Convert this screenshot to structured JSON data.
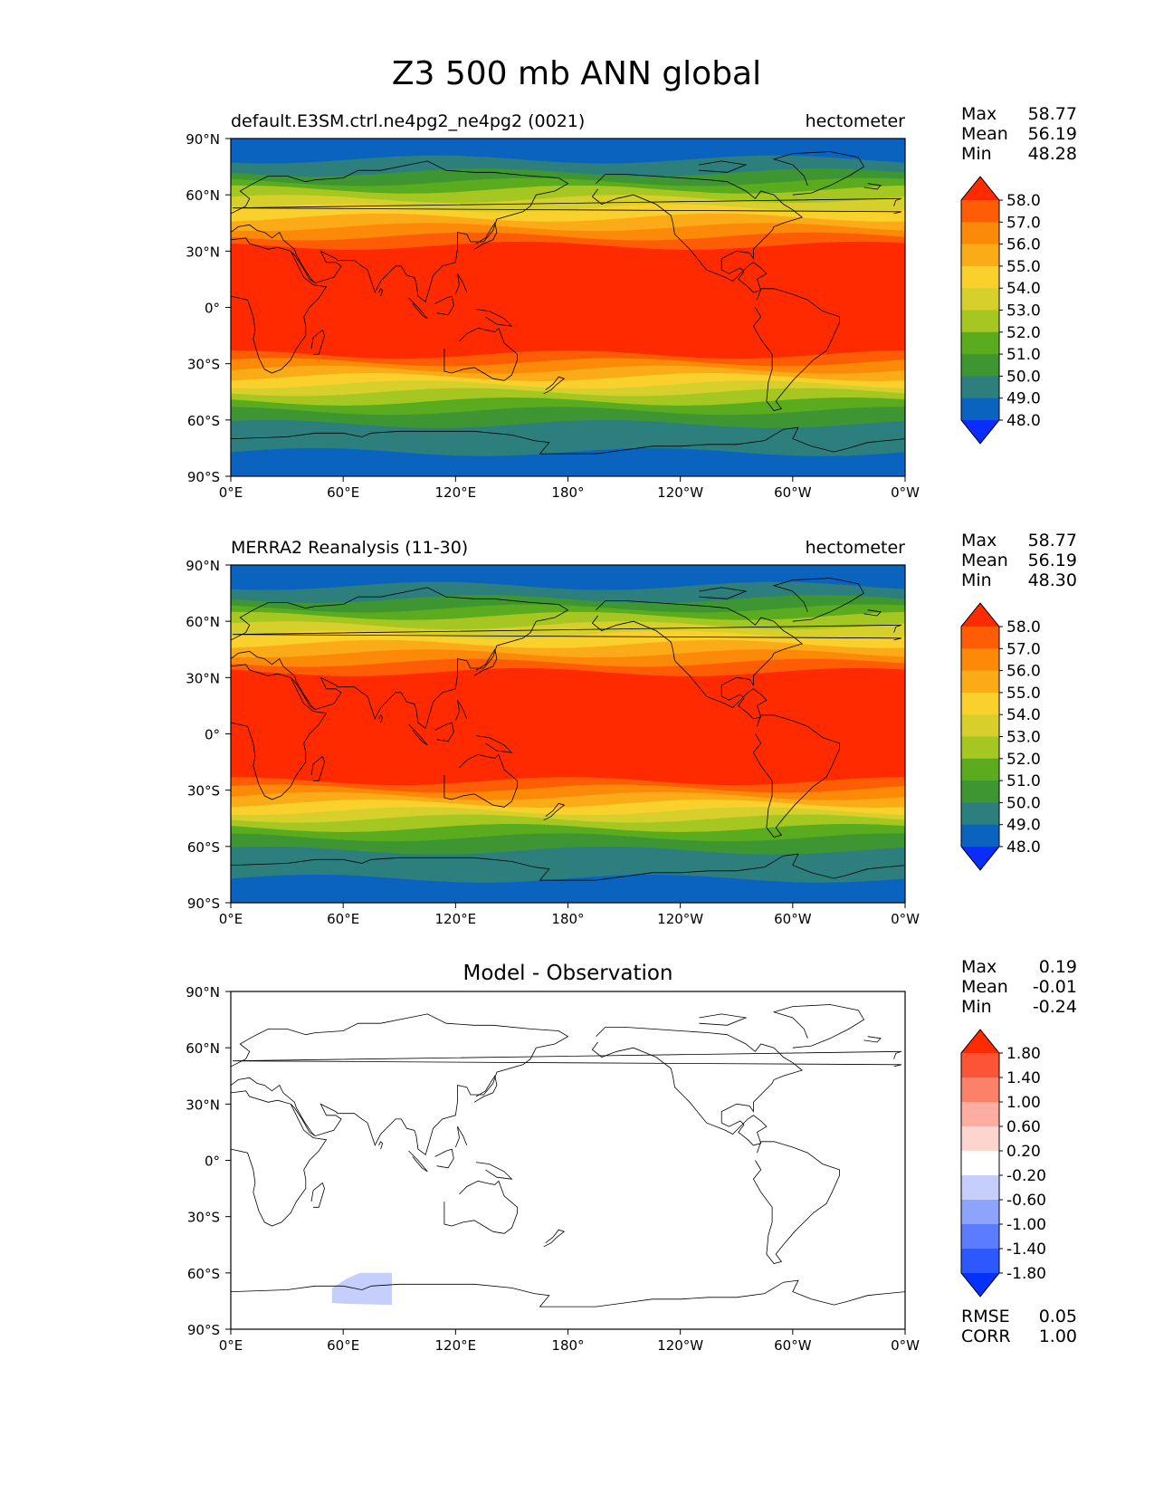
{
  "figure_title": "Z3 500 mb ANN global",
  "colors": {
    "model_levels": [
      "#0a2cff",
      "#0b63c0",
      "#2d7f7d",
      "#3e9632",
      "#5aab1e",
      "#a6c621",
      "#d7cf2b",
      "#f9d02c",
      "#fbab17",
      "#fd8908",
      "#fe5c05",
      "#ff2a00"
    ],
    "diff_levels": [
      "#0531ff",
      "#2d57ff",
      "#5b7cff",
      "#8ea3fb",
      "#c6cffc",
      "#ffffff",
      "#fed5ce",
      "#feada0",
      "#fd8069",
      "#fd5336",
      "#ff2a00"
    ],
    "coastline": "#000000"
  },
  "chart_data": [
    {
      "type": "heatmap",
      "title": "default.E3SM.ctrl.ne4pg2_ne4pg2 (0021)",
      "units": "hectometer",
      "xticks": [
        "0°E",
        "60°E",
        "120°E",
        "180°",
        "120°W",
        "60°W",
        "0°W"
      ],
      "yticks": [
        "90°N",
        "60°N",
        "30°N",
        "0°",
        "30°S",
        "60°S",
        "90°S"
      ],
      "xlim": [
        0,
        360
      ],
      "ylim": [
        -90,
        90
      ],
      "stats": [
        {
          "label": "Max",
          "value": "58.77"
        },
        {
          "label": "Mean",
          "value": "56.19"
        },
        {
          "label": "Min",
          "value": "48.28"
        }
      ],
      "colorbar_ticks": [
        "58.0",
        "57.0",
        "56.0",
        "55.0",
        "54.0",
        "53.0",
        "52.0",
        "51.0",
        "50.0",
        "49.0",
        "48.0"
      ],
      "level_bounds_lat": [
        -77,
        -62,
        -55,
        -50,
        -45,
        -41,
        -37,
        -33,
        -29,
        -25,
        33,
        38,
        43,
        48,
        53,
        58,
        63,
        67,
        72,
        79
      ]
    },
    {
      "type": "heatmap",
      "title": "MERRA2 Reanalysis (11-30)",
      "units": "hectometer",
      "xticks": [
        "0°E",
        "60°E",
        "120°E",
        "180°",
        "120°W",
        "60°W",
        "0°W"
      ],
      "yticks": [
        "90°N",
        "60°N",
        "30°N",
        "0°",
        "30°S",
        "60°S",
        "90°S"
      ],
      "xlim": [
        0,
        360
      ],
      "ylim": [
        -90,
        90
      ],
      "stats": [
        {
          "label": "Max",
          "value": "58.77"
        },
        {
          "label": "Mean",
          "value": "56.19"
        },
        {
          "label": "Min",
          "value": "48.30"
        }
      ],
      "colorbar_ticks": [
        "58.0",
        "57.0",
        "56.0",
        "55.0",
        "54.0",
        "53.0",
        "52.0",
        "51.0",
        "50.0",
        "49.0",
        "48.0"
      ],
      "level_bounds_lat": [
        -77,
        -62,
        -55,
        -50,
        -45,
        -41,
        -37,
        -33,
        -29,
        -25,
        33,
        38,
        43,
        48,
        53,
        58,
        63,
        67,
        72,
        79
      ]
    },
    {
      "type": "heatmap",
      "title": "Model - Observation",
      "xticks": [
        "0°E",
        "60°E",
        "120°E",
        "180°",
        "120°W",
        "60°W",
        "0°W"
      ],
      "yticks": [
        "90°N",
        "60°N",
        "30°N",
        "0°",
        "30°S",
        "60°S",
        "90°S"
      ],
      "xlim": [
        0,
        360
      ],
      "ylim": [
        -90,
        90
      ],
      "stats": [
        {
          "label": "Max",
          "value": "0.19"
        },
        {
          "label": "Mean",
          "value": "-0.01"
        },
        {
          "label": "Min",
          "value": "-0.24"
        }
      ],
      "colorbar_ticks": [
        "1.80",
        "1.40",
        "1.00",
        "0.60",
        "0.20",
        "-0.20",
        "-0.60",
        "-1.00",
        "-1.40",
        "-1.80"
      ],
      "anomaly_region": {
        "lon": [
          54,
          86
        ],
        "lat": [
          -77,
          -60
        ],
        "level": "-0.60 to -0.20"
      },
      "metrics": [
        {
          "label": "RMSE",
          "value": "0.05"
        },
        {
          "label": "CORR",
          "value": "1.00"
        }
      ]
    }
  ]
}
